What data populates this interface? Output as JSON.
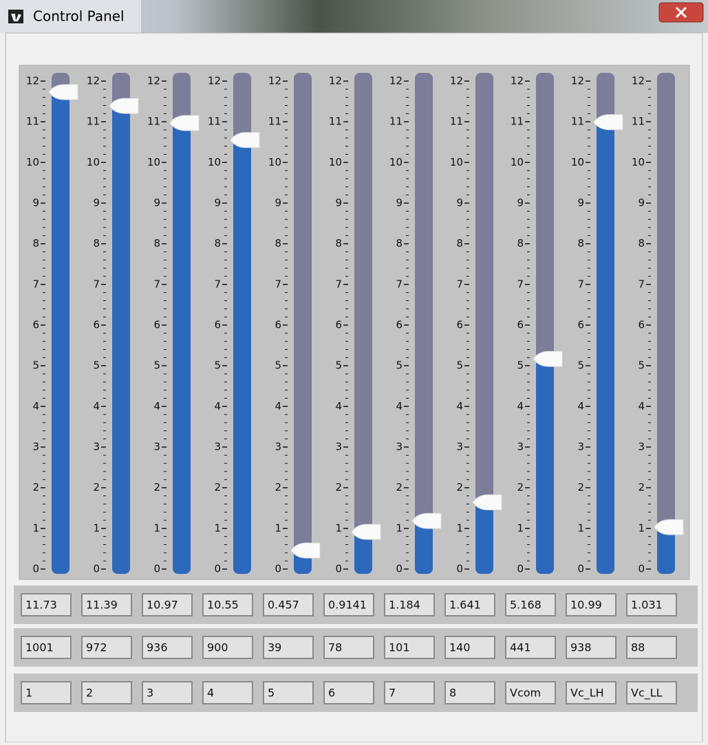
{
  "window": {
    "title": "Control Panel"
  },
  "scale": {
    "range": [
      0,
      12
    ],
    "ticks": [
      0,
      1,
      2,
      3,
      4,
      5,
      6,
      7,
      8,
      9,
      10,
      11,
      12
    ]
  },
  "sliders": [
    {
      "value": 11.73,
      "code": 1001,
      "label": "1"
    },
    {
      "value": 11.39,
      "code": 972,
      "label": "2"
    },
    {
      "value": 10.97,
      "code": 936,
      "label": "3"
    },
    {
      "value": 10.55,
      "code": 900,
      "label": "4"
    },
    {
      "value": 0.457,
      "code": 39,
      "label": "5"
    },
    {
      "value": 0.9141,
      "code": 78,
      "label": "6"
    },
    {
      "value": 1.184,
      "code": 101,
      "label": "7"
    },
    {
      "value": 1.641,
      "code": 140,
      "label": "8"
    },
    {
      "value": 5.168,
      "code": 441,
      "label": "Vcom"
    },
    {
      "value": 10.99,
      "code": 938,
      "label": "Vc_LH"
    },
    {
      "value": 1.031,
      "code": 88,
      "label": "Vc_LL"
    }
  ]
}
